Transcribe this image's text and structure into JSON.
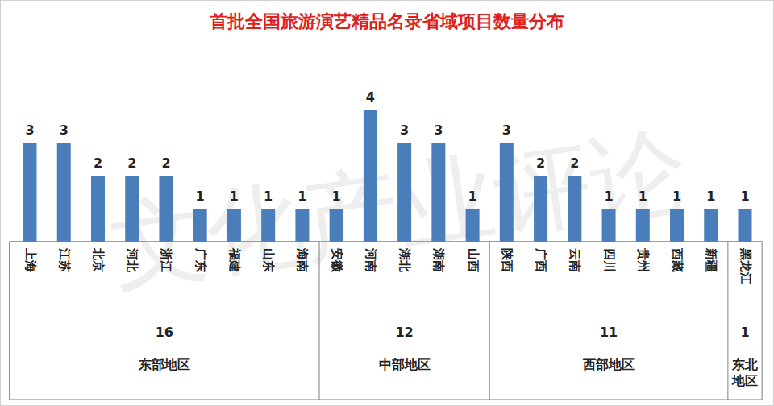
{
  "chart_data": {
    "type": "bar",
    "title": "首批全国旅游演艺精品名录省域项目数量分布",
    "categories": [
      "上海",
      "江苏",
      "北京",
      "河北",
      "浙江",
      "广东",
      "福建",
      "山东",
      "海南",
      "安徽",
      "河南",
      "湖北",
      "湖南",
      "山西",
      "陕西",
      "广西",
      "云南",
      "四川",
      "贵州",
      "西藏",
      "新疆",
      "黑龙江"
    ],
    "values": [
      3,
      3,
      2,
      2,
      2,
      1,
      1,
      1,
      1,
      1,
      4,
      3,
      3,
      1,
      3,
      2,
      2,
      1,
      1,
      1,
      1,
      1
    ],
    "color": "#4a7ebb",
    "ylim": [
      0,
      4
    ],
    "data_labels": true,
    "tick_labels": "x",
    "groups": [
      {
        "name": "东部地区",
        "value": 16,
        "categories": [
          "上海",
          "江苏",
          "北京",
          "河北",
          "浙江",
          "广东",
          "福建",
          "山东",
          "海南"
        ]
      },
      {
        "name": "中部地区",
        "value": 12,
        "categories": [
          "安徽",
          "河南",
          "湖北",
          "湖南",
          "山西"
        ]
      },
      {
        "name": "西部地区",
        "value": 11,
        "categories": [
          "陕西",
          "广西",
          "云南",
          "四川",
          "贵州",
          "西藏",
          "新疆"
        ]
      },
      {
        "name": "东北地区",
        "value": 1,
        "categories": [
          "黑龙江"
        ]
      }
    ],
    "annotations": [
      "文化产业评论"
    ]
  }
}
